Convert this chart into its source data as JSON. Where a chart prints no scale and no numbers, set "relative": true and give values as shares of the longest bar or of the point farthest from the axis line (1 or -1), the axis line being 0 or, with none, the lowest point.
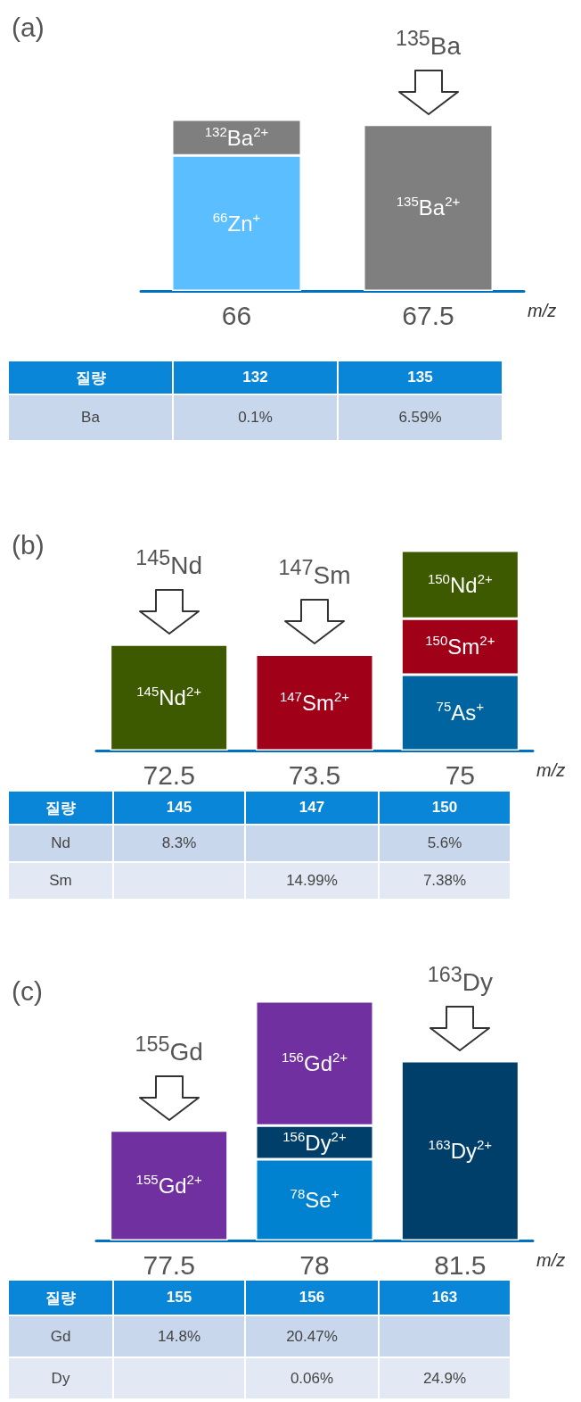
{
  "chart_data": [
    {
      "type": "bar",
      "title": "(a)",
      "xlabel": "m/z",
      "categories": [
        "66",
        "67.5"
      ],
      "stacked": true,
      "relative": true,
      "series": [
        {
          "name": "$^{66}$Zn$^{+}$",
          "color": "#5bbfff",
          "values": [
            0.79,
            null
          ]
        },
        {
          "name": "$^{135}$Ba$^{2+}$",
          "color": "#7f7f7f",
          "values": [
            null,
            0.97
          ]
        },
        {
          "name": "$^{132}$Ba$^{2+}$",
          "color": "#7f7f7f",
          "values": [
            0.21,
            null
          ]
        }
      ],
      "annotations": [
        {
          "text": "$^{135}$Ba",
          "x": "67.5",
          "y": 0.97
        }
      ]
    },
    {
      "type": "other",
      "categories": [
        "질량",
        "132",
        "135"
      ],
      "y_categories": [
        "Ba"
      ],
      "cell_labels": [
        [
          "0.1%",
          "6.59%"
        ]
      ]
    },
    {
      "type": "bar",
      "title": "(b)",
      "xlabel": "m/z",
      "categories": [
        "72.5",
        "73.5",
        "75"
      ],
      "stacked": true,
      "relative": true,
      "series": [
        {
          "name": "$^{145}$Nd$^{2+}$",
          "color": "#3d5a00",
          "values": [
            0.53,
            null,
            null
          ]
        },
        {
          "name": "$^{147}$Sm$^{2+}$",
          "color": "#a00018",
          "values": [
            null,
            0.48,
            null
          ]
        },
        {
          "name": "$^{75}$As$^{+}$",
          "color": "#0064a0",
          "values": [
            null,
            null,
            0.38
          ]
        },
        {
          "name": "$^{150}$Sm$^{2+}$",
          "color": "#a00018",
          "values": [
            null,
            null,
            0.28
          ]
        },
        {
          "name": "$^{150}$Nd$^{2+}$",
          "color": "#3d5a00",
          "values": [
            null,
            null,
            0.34
          ]
        }
      ],
      "annotations": [
        {
          "text": "$^{145}$Nd",
          "x": "72.5",
          "y": 0.53
        },
        {
          "text": "$^{147}$Sm",
          "x": "73.5",
          "y": 0.48
        }
      ]
    },
    {
      "type": "other",
      "categories": [
        "질량",
        "145",
        "147",
        "150"
      ],
      "y_categories": [
        "Nd",
        "Sm"
      ],
      "cell_labels": [
        [
          "8.3%",
          null,
          "5.6%"
        ],
        [
          null,
          "14.99%",
          "7.38%"
        ]
      ]
    },
    {
      "type": "bar",
      "title": "(c)",
      "xlabel": "m/z",
      "categories": [
        "77.5",
        "78",
        "81.5"
      ],
      "stacked": true,
      "relative": true,
      "series": [
        {
          "name": "$^{155}$Gd$^{2+}$",
          "color": "#7030a0",
          "values": [
            0.46,
            null,
            null
          ]
        },
        {
          "name": "$^{78}$Se$^{+}$",
          "color": "#0082d0",
          "values": [
            null,
            0.34,
            null
          ]
        },
        {
          "name": "$^{163}$Dy$^{2+}$",
          "color": "#003f6a",
          "values": [
            null,
            null,
            0.75
          ]
        },
        {
          "name": "$^{156}$Dy$^{2+}$",
          "color": "#003f6a",
          "values": [
            null,
            0.14,
            null
          ]
        },
        {
          "name": "$^{156}$Gd$^{2+}$",
          "color": "#7030a0",
          "values": [
            null,
            0.52,
            null
          ]
        }
      ],
      "annotations": [
        {
          "text": "$^{155}$Gd",
          "x": "77.5",
          "y": 0.46
        },
        {
          "text": "$^{163}$Dy",
          "x": "81.5",
          "y": 0.75
        }
      ]
    },
    {
      "type": "other",
      "categories": [
        "질량",
        "155",
        "156",
        "163"
      ],
      "y_categories": [
        "Gd",
        "Dy"
      ],
      "cell_labels": [
        [
          "14.8%",
          "20.47%",
          null
        ],
        [
          null,
          "0.06%",
          "24.9%"
        ]
      ]
    }
  ]
}
